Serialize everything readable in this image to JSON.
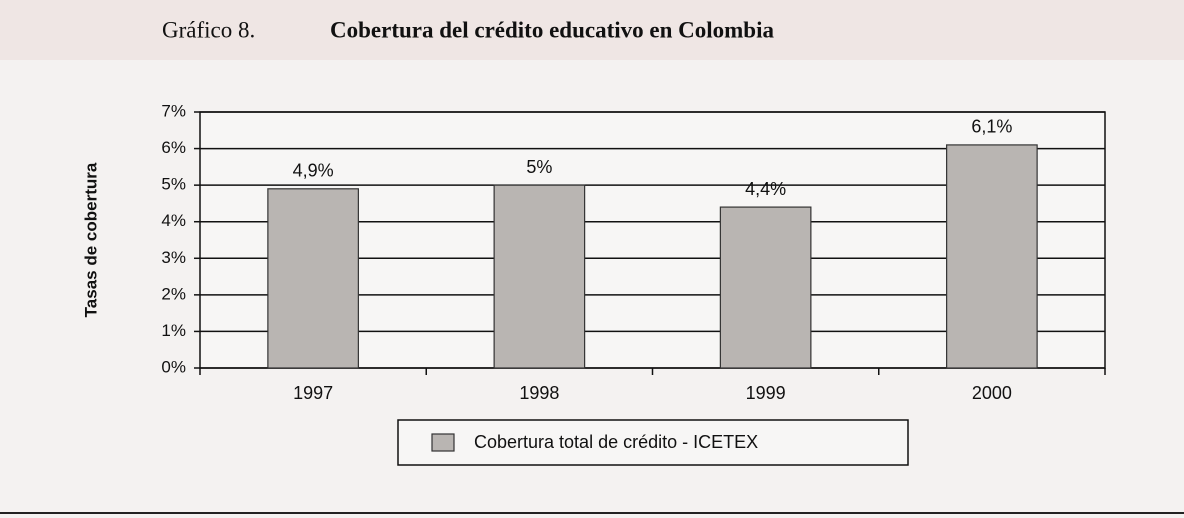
{
  "chart_data": {
    "type": "bar",
    "label": "Gráfico 8.",
    "title": "Cobertura del crédito educativo en Colombia",
    "y_label": "Tasas de cobertura",
    "categories": [
      "1997",
      "1998",
      "1999",
      "2000"
    ],
    "series": [
      {
        "name": "Cobertura total de crédito - ICETEX",
        "color": "#b9b5b2",
        "values": [
          4.9,
          5,
          4.4,
          6.1
        ],
        "value_labels": [
          "4,9%",
          "5%",
          "4,4%",
          "6,1%"
        ]
      }
    ],
    "ylim": [
      0,
      7
    ],
    "yticks": [
      {
        "value": 0,
        "label": "0%"
      },
      {
        "value": 1,
        "label": "1%"
      },
      {
        "value": 2,
        "label": "2%"
      },
      {
        "value": 3,
        "label": "3%"
      },
      {
        "value": 4,
        "label": "4%"
      },
      {
        "value": 5,
        "label": "5%"
      },
      {
        "value": 6,
        "label": "6%"
      },
      {
        "value": 7,
        "label": "7%"
      }
    ],
    "grid": true
  }
}
